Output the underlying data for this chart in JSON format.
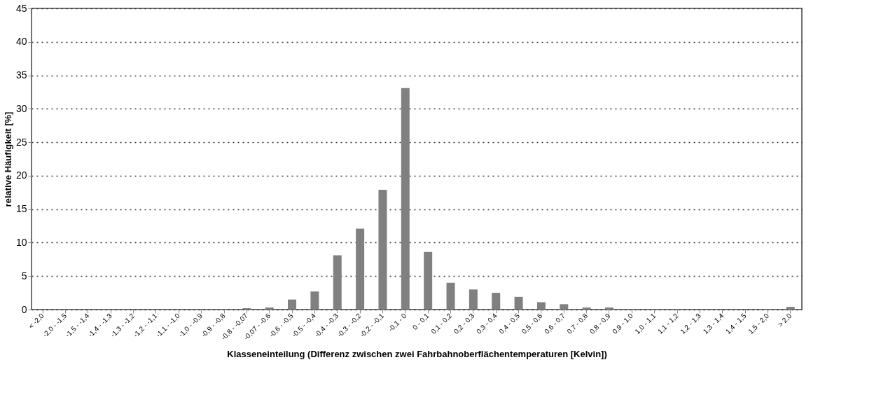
{
  "chart_data": {
    "type": "bar",
    "xlabel": "Klasseneinteilung (Differenz zwischen zwei Fahrbahnoberflächentemperaturen [Kelvin])",
    "ylabel": "relative Häufigkeit [%]",
    "categories": [
      "< -2,0",
      "-2,0 - -1,5",
      "-1,5 - -1,4",
      "-1,4 - -1,3",
      "-1,3 - -1,2",
      "-1,2 - -1,1",
      "-1,1 - -1,0",
      "-1,0 - -0,9",
      "-0,9 - -0,8",
      "-0,8 - -0,07",
      "-0,07 - -0,6",
      "-0,6 - -0,5",
      "-0,5 - -0,4",
      "-0,4 - -0,3",
      "-0,3 - -0,2",
      "-0,2 - -0,1",
      "-0,1 - 0",
      "0 - 0,1",
      "0,1 - 0,2",
      "0,2 - 0,3",
      "0,3 - 0,4",
      "0,4 - 0,5",
      "0,5 - 0,6",
      "0,6 - 0,7",
      "0,7 - 0,8",
      "0,8 - 0,9",
      "0,9 - 1,0",
      "1,0 - 1,1",
      "1,1 - 1,2",
      "1,2 - 1,3",
      "1,3 - 1,4",
      "1,4 - 1,5",
      "1,5 - 2,0",
      "> 2,0"
    ],
    "values": [
      0,
      0,
      0,
      0,
      0,
      0,
      0,
      0,
      0.1,
      0.2,
      0.3,
      1.5,
      2.7,
      8.1,
      12.1,
      17.9,
      33.1,
      8.6,
      4.0,
      3.0,
      2.5,
      1.9,
      1.1,
      0.8,
      0.3,
      0.3,
      0.1,
      0.1,
      0.1,
      0,
      0,
      0,
      0.1,
      0.4
    ],
    "color": "#808080",
    "ylim": [
      0,
      45
    ],
    "yticks": [
      0,
      5,
      10,
      15,
      20,
      25,
      30,
      35,
      40,
      45
    ],
    "grid": "y",
    "line_style": "dotted"
  }
}
